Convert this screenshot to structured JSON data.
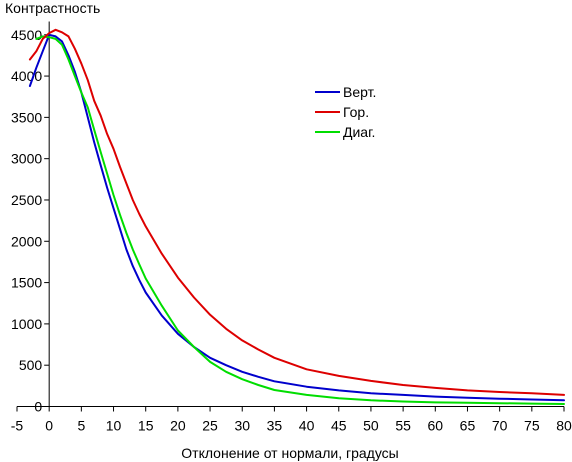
{
  "chart_data": {
    "type": "line",
    "title": "",
    "ylabel": "Контрастность",
    "xlabel": "Отклонение от нормали, градусы",
    "xlim": [
      -5,
      80
    ],
    "ylim": [
      0,
      4600
    ],
    "xticks": [
      -5,
      0,
      5,
      10,
      15,
      20,
      25,
      30,
      35,
      40,
      45,
      50,
      55,
      60,
      65,
      70,
      75,
      80
    ],
    "yticks": [
      0,
      500,
      1000,
      1500,
      2000,
      2500,
      3000,
      3500,
      4000,
      4500
    ],
    "grid": false,
    "legend_position": "top-right",
    "series": [
      {
        "name": "Верт.",
        "color": "#0000cc",
        "x": [
          -3,
          -2,
          -1,
          0,
          1,
          2,
          3,
          4,
          5,
          6,
          7,
          8,
          9,
          10,
          11,
          12,
          13,
          14,
          15,
          17.5,
          20,
          22.5,
          25,
          27.5,
          30,
          32.5,
          35,
          40,
          45,
          50,
          55,
          60,
          65,
          70,
          75,
          80
        ],
        "values": [
          3880,
          4100,
          4300,
          4500,
          4480,
          4420,
          4250,
          4050,
          3800,
          3500,
          3200,
          2920,
          2650,
          2400,
          2150,
          1900,
          1700,
          1530,
          1380,
          1100,
          880,
          720,
          590,
          500,
          420,
          360,
          305,
          240,
          195,
          160,
          140,
          120,
          105,
          95,
          85,
          75
        ]
      },
      {
        "name": "Гор.",
        "color": "#dd0000",
        "x": [
          -3,
          -2,
          -1,
          0,
          1,
          2,
          3,
          4,
          5,
          6,
          7,
          8,
          9,
          10,
          11,
          12,
          13,
          14,
          15,
          17.5,
          20,
          22.5,
          25,
          27.5,
          30,
          32.5,
          35,
          40,
          45,
          50,
          55,
          60,
          65,
          70,
          75,
          80
        ],
        "values": [
          4200,
          4300,
          4450,
          4520,
          4560,
          4530,
          4480,
          4330,
          4150,
          3950,
          3700,
          3520,
          3300,
          3120,
          2900,
          2700,
          2500,
          2330,
          2180,
          1850,
          1560,
          1320,
          1110,
          940,
          800,
          690,
          590,
          450,
          370,
          310,
          260,
          225,
          195,
          175,
          160,
          140
        ]
      },
      {
        "name": "Диаг.",
        "color": "#00dd00",
        "x": [
          -2,
          -1,
          0,
          1,
          2,
          3,
          4,
          5,
          6,
          7,
          8,
          9,
          10,
          11,
          12,
          13,
          14,
          15,
          17.5,
          20,
          22.5,
          25,
          27.5,
          30,
          32.5,
          35,
          40,
          45,
          50,
          55,
          60,
          65,
          70,
          75,
          80
        ],
        "values": [
          4450,
          4480,
          4470,
          4450,
          4380,
          4200,
          4000,
          3800,
          3620,
          3350,
          3080,
          2820,
          2560,
          2320,
          2100,
          1900,
          1720,
          1550,
          1220,
          920,
          720,
          540,
          420,
          330,
          260,
          200,
          140,
          100,
          75,
          60,
          50,
          45,
          40,
          35,
          30
        ]
      }
    ]
  }
}
